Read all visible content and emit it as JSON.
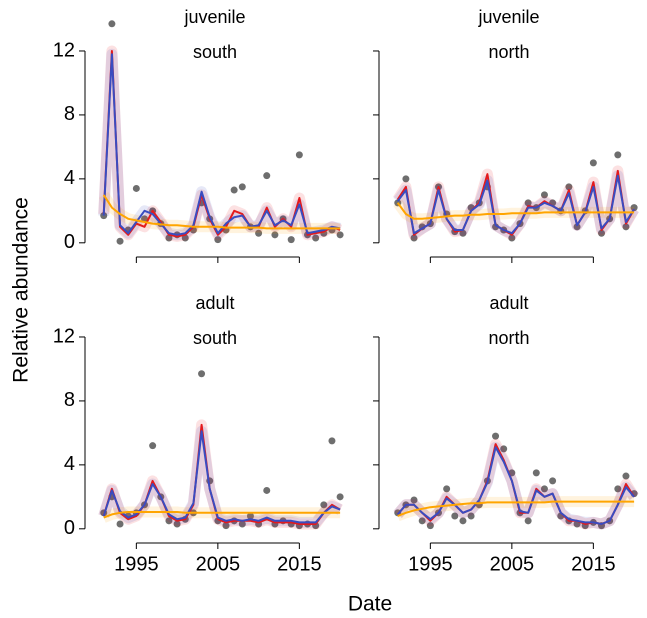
{
  "ylabel": "Relative abundance",
  "xlabel": "Date",
  "chart_data": [
    {
      "type": "line",
      "facet": [
        "juvenile",
        "south"
      ],
      "x": [
        1991,
        1992,
        1993,
        1994,
        1995,
        1996,
        1997,
        1998,
        1999,
        2000,
        2001,
        2002,
        2003,
        2004,
        2005,
        2006,
        2007,
        2008,
        2009,
        2010,
        2011,
        2012,
        2013,
        2014,
        2015,
        2016,
        2017,
        2018,
        2019,
        2020
      ],
      "xlim": [
        1988.7,
        2020.6
      ],
      "xticks": [
        1995,
        2005,
        2015
      ],
      "ylim": [
        -0.7,
        14
      ],
      "yticks": [
        0,
        4,
        8,
        12
      ],
      "series": [
        {
          "kind": "points",
          "color": "#555555",
          "values": [
            1.7,
            13.7,
            0.1,
            0.8,
            3.4,
            1.5,
            2.0,
            1.2,
            0.3,
            0.5,
            0.3,
            0.8,
            2.5,
            1.5,
            0.2,
            0.8,
            3.3,
            3.5,
            1.0,
            0.6,
            4.2,
            0.5,
            1.5,
            0.2,
            5.5,
            0.5,
            0.3,
            0.6,
            0.8,
            0.5
          ]
        },
        {
          "kind": "line",
          "color": "#e41a1c",
          "values": [
            1.8,
            12.0,
            1.0,
            0.5,
            1.2,
            1.0,
            2.0,
            1.3,
            0.5,
            0.4,
            0.5,
            1.0,
            3.0,
            1.5,
            0.5,
            1.0,
            2.0,
            1.8,
            1.0,
            1.0,
            2.2,
            1.0,
            1.5,
            1.0,
            2.8,
            0.5,
            0.6,
            0.7,
            1.0,
            0.8
          ]
        },
        {
          "kind": "line",
          "color": "#3a4cc0",
          "values": [
            1.7,
            11.8,
            1.1,
            0.6,
            1.3,
            2.0,
            1.8,
            1.2,
            0.6,
            0.5,
            0.6,
            1.1,
            3.2,
            1.6,
            0.6,
            1.2,
            1.6,
            1.7,
            1.0,
            1.1,
            2.0,
            1.1,
            1.4,
            1.1,
            2.4,
            0.6,
            0.7,
            0.8,
            1.0,
            0.9
          ]
        },
        {
          "kind": "line",
          "color": "#ffa500",
          "values": [
            3.0,
            2.2,
            1.8,
            1.5,
            1.4,
            1.3,
            1.2,
            1.15,
            1.1,
            1.1,
            1.05,
            1.0,
            1.0,
            1.0,
            1.0,
            0.95,
            0.95,
            0.95,
            0.95,
            0.95,
            0.9,
            0.9,
            0.9,
            0.9,
            0.9,
            0.9,
            0.9,
            0.9,
            0.9,
            0.9
          ]
        }
      ]
    },
    {
      "type": "line",
      "facet": [
        "juvenile",
        "north"
      ],
      "x": [
        1991,
        1992,
        1993,
        1994,
        1995,
        1996,
        1997,
        1998,
        1999,
        2000,
        2001,
        2002,
        2003,
        2004,
        2005,
        2006,
        2007,
        2008,
        2009,
        2010,
        2011,
        2012,
        2013,
        2014,
        2015,
        2016,
        2017,
        2018,
        2019,
        2020
      ],
      "xlim": [
        1988.7,
        2020.6
      ],
      "xticks": [
        1995,
        2005,
        2015
      ],
      "ylim": [
        -0.7,
        14
      ],
      "yticks": [
        0,
        4,
        8,
        12
      ],
      "series": [
        {
          "kind": "points",
          "color": "#555555",
          "values": [
            2.5,
            4.0,
            0.3,
            1.0,
            1.2,
            3.5,
            1.8,
            0.7,
            0.6,
            2.2,
            2.5,
            3.5,
            1.0,
            0.8,
            0.3,
            1.2,
            2.5,
            2.2,
            3.0,
            2.5,
            2.0,
            3.5,
            1.0,
            2.0,
            5.0,
            0.6,
            1.5,
            5.5,
            1.0,
            2.2
          ]
        },
        {
          "kind": "line",
          "color": "#e41a1c",
          "values": [
            2.7,
            3.5,
            0.5,
            0.9,
            1.2,
            3.5,
            1.5,
            0.7,
            0.8,
            2.0,
            2.5,
            4.3,
            1.1,
            0.8,
            0.5,
            1.2,
            2.3,
            2.2,
            2.6,
            2.3,
            2.0,
            3.3,
            1.1,
            1.9,
            3.8,
            0.8,
            1.5,
            4.5,
            1.2,
            2.1
          ]
        },
        {
          "kind": "line",
          "color": "#3a4cc0",
          "values": [
            2.6,
            3.3,
            0.6,
            0.9,
            1.2,
            3.3,
            1.5,
            0.8,
            0.8,
            2.0,
            2.4,
            3.9,
            1.1,
            0.8,
            0.6,
            1.2,
            2.2,
            2.2,
            2.5,
            2.3,
            2.0,
            3.1,
            1.1,
            1.9,
            3.5,
            0.9,
            1.5,
            4.2,
            1.3,
            2.1
          ]
        },
        {
          "kind": "line",
          "color": "#ffa500",
          "values": [
            2.5,
            1.8,
            1.5,
            1.5,
            1.55,
            1.6,
            1.65,
            1.7,
            1.7,
            1.75,
            1.75,
            1.8,
            1.8,
            1.8,
            1.85,
            1.85,
            1.85,
            1.85,
            1.9,
            1.9,
            1.9,
            1.9,
            1.9,
            1.9,
            1.9,
            1.9,
            1.9,
            1.9,
            1.9,
            1.9
          ]
        }
      ]
    },
    {
      "type": "line",
      "facet": [
        "adult",
        "south"
      ],
      "x": [
        1991,
        1992,
        1993,
        1994,
        1995,
        1996,
        1997,
        1998,
        1999,
        2000,
        2001,
        2002,
        2003,
        2004,
        2005,
        2006,
        2007,
        2008,
        2009,
        2010,
        2011,
        2012,
        2013,
        2014,
        2015,
        2016,
        2017,
        2018,
        2019,
        2020
      ],
      "xlim": [
        1988.7,
        2020.6
      ],
      "xticks": [
        1995,
        2005,
        2015
      ],
      "ylim": [
        -0.7,
        14
      ],
      "yticks": [
        0,
        4,
        8,
        12
      ],
      "series": [
        {
          "kind": "points",
          "color": "#555555",
          "values": [
            1.0,
            2.0,
            0.3,
            0.8,
            1.0,
            1.5,
            5.2,
            2.0,
            0.5,
            0.3,
            0.6,
            1.0,
            9.7,
            3.0,
            0.5,
            0.2,
            0.5,
            0.3,
            0.8,
            0.3,
            2.4,
            0.3,
            0.5,
            0.3,
            0.2,
            0.3,
            0.2,
            1.5,
            5.5,
            2.0
          ]
        },
        {
          "kind": "line",
          "color": "#e41a1c",
          "values": [
            0.8,
            2.5,
            1.0,
            0.6,
            0.8,
            1.5,
            3.0,
            2.0,
            0.8,
            0.5,
            0.6,
            1.5,
            6.5,
            2.5,
            0.6,
            0.4,
            0.5,
            0.5,
            0.5,
            0.4,
            0.6,
            0.4,
            0.4,
            0.4,
            0.3,
            0.3,
            0.3,
            1.0,
            1.5,
            1.2
          ]
        },
        {
          "kind": "line",
          "color": "#3a4cc0",
          "values": [
            0.8,
            2.4,
            1.1,
            0.7,
            0.9,
            1.5,
            2.8,
            2.0,
            0.9,
            0.6,
            0.7,
            1.6,
            6.1,
            2.5,
            0.7,
            0.5,
            0.6,
            0.5,
            0.6,
            0.5,
            0.7,
            0.5,
            0.5,
            0.5,
            0.4,
            0.4,
            0.4,
            1.0,
            1.4,
            1.2
          ]
        },
        {
          "kind": "line",
          "color": "#ffa500",
          "values": [
            0.7,
            0.9,
            1.0,
            1.05,
            1.05,
            1.05,
            1.05,
            1.05,
            1.05,
            1.05,
            1.0,
            1.0,
            1.0,
            1.0,
            1.0,
            1.0,
            1.0,
            1.0,
            1.0,
            1.0,
            1.0,
            1.0,
            1.0,
            1.0,
            1.0,
            1.0,
            1.0,
            1.0,
            1.0,
            1.0
          ]
        }
      ]
    },
    {
      "type": "line",
      "facet": [
        "adult",
        "north"
      ],
      "x": [
        1991,
        1992,
        1993,
        1994,
        1995,
        1996,
        1997,
        1998,
        1999,
        2000,
        2001,
        2002,
        2003,
        2004,
        2005,
        2006,
        2007,
        2008,
        2009,
        2010,
        2011,
        2012,
        2013,
        2014,
        2015,
        2016,
        2017,
        2018,
        2019,
        2020
      ],
      "xlim": [
        1988.7,
        2020.6
      ],
      "xticks": [
        1995,
        2005,
        2015
      ],
      "ylim": [
        -0.7,
        14
      ],
      "yticks": [
        0,
        4,
        8,
        12
      ],
      "series": [
        {
          "kind": "points",
          "color": "#555555",
          "values": [
            1.0,
            1.5,
            1.8,
            0.5,
            0.2,
            1.0,
            2.5,
            0.8,
            0.5,
            0.8,
            1.5,
            3.0,
            5.8,
            5.0,
            3.5,
            1.0,
            0.5,
            3.5,
            2.5,
            3.0,
            0.8,
            0.5,
            0.3,
            0.2,
            0.4,
            0.2,
            0.5,
            2.5,
            3.3,
            2.2
          ]
        },
        {
          "kind": "line",
          "color": "#e41a1c",
          "values": [
            0.9,
            1.5,
            1.5,
            1.0,
            0.5,
            1.0,
            2.0,
            1.5,
            1.0,
            1.2,
            1.8,
            3.0,
            5.3,
            4.3,
            3.0,
            1.0,
            1.0,
            2.5,
            2.0,
            2.2,
            1.0,
            0.5,
            0.5,
            0.3,
            0.4,
            0.3,
            0.5,
            1.5,
            2.8,
            2.0
          ]
        },
        {
          "kind": "line",
          "color": "#3a4cc0",
          "values": [
            0.9,
            1.5,
            1.5,
            1.0,
            0.6,
            1.0,
            1.9,
            1.5,
            1.0,
            1.2,
            1.8,
            2.9,
            5.1,
            4.2,
            3.0,
            1.1,
            1.0,
            2.4,
            2.0,
            2.2,
            1.0,
            0.6,
            0.5,
            0.4,
            0.4,
            0.3,
            0.5,
            1.5,
            2.6,
            2.0
          ]
        },
        {
          "kind": "line",
          "color": "#ffa500",
          "values": [
            0.8,
            1.0,
            1.15,
            1.25,
            1.35,
            1.4,
            1.45,
            1.5,
            1.55,
            1.6,
            1.6,
            1.65,
            1.65,
            1.65,
            1.65,
            1.65,
            1.65,
            1.65,
            1.65,
            1.7,
            1.7,
            1.7,
            1.7,
            1.7,
            1.7,
            1.7,
            1.7,
            1.7,
            1.7,
            1.7
          ]
        }
      ]
    }
  ]
}
